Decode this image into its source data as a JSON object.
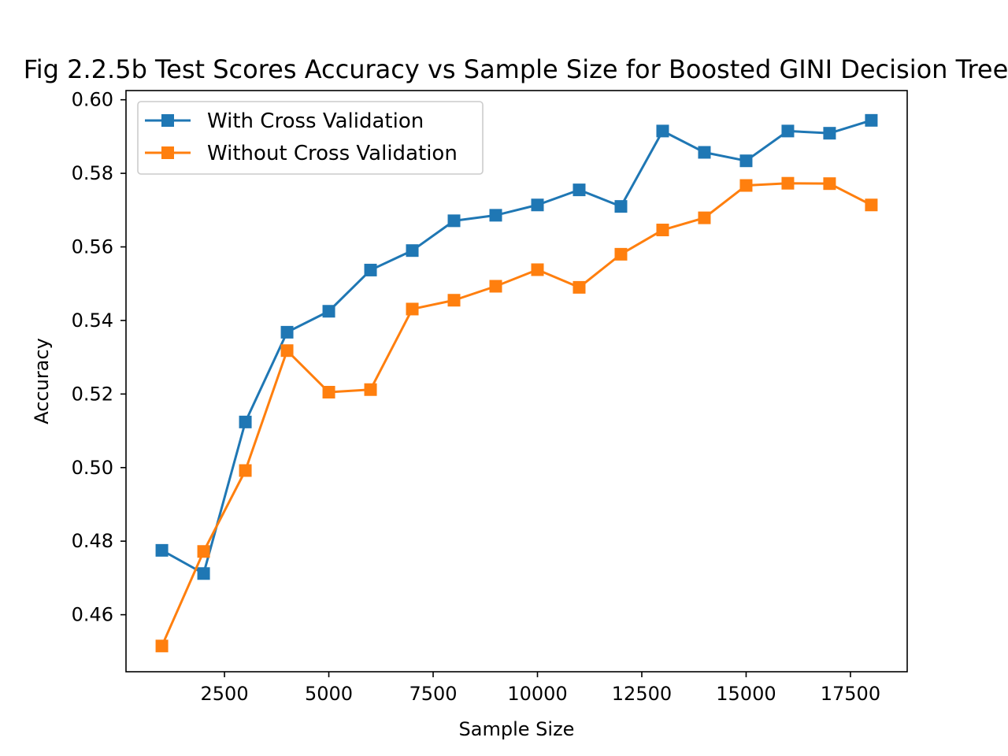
{
  "chart_data": {
    "type": "line",
    "title": "Fig 2.2.5b Test Scores Accuracy vs Sample Size for Boosted GINI Decision Tree",
    "xlabel": "Sample Size",
    "ylabel": "Accuracy",
    "xlim": [
      140,
      18860
    ],
    "ylim": [
      0.4445,
      0.6025
    ],
    "xticks": [
      2500,
      5000,
      7500,
      10000,
      12500,
      15000,
      17500
    ],
    "yticks": [
      0.46,
      0.48,
      0.5,
      0.52,
      0.54,
      0.56,
      0.58,
      0.6
    ],
    "ytick_labels": [
      "0.46",
      "0.48",
      "0.50",
      "0.52",
      "0.54",
      "0.56",
      "0.58",
      "0.60"
    ],
    "grid": false,
    "legend": "upper left",
    "x": [
      1000,
      2000,
      3000,
      4000,
      5000,
      6000,
      7000,
      8000,
      9000,
      10000,
      11000,
      12000,
      13000,
      14000,
      15000,
      16000,
      17000,
      18000
    ],
    "series": [
      {
        "name": "With Cross Validation",
        "color": "#1f77b4",
        "marker": "square",
        "values": [
          0.4775,
          0.4712,
          0.5124,
          0.5368,
          0.5425,
          0.5537,
          0.559,
          0.5671,
          0.5686,
          0.5714,
          0.5755,
          0.571,
          0.5915,
          0.5857,
          0.5834,
          0.5915,
          0.5909,
          0.5944
        ]
      },
      {
        "name": "Without Cross Validation",
        "color": "#ff7f0e",
        "marker": "square",
        "values": [
          0.4515,
          0.4772,
          0.4992,
          0.5318,
          0.5205,
          0.5212,
          0.5431,
          0.5455,
          0.5493,
          0.5538,
          0.549,
          0.558,
          0.5646,
          0.5679,
          0.5767,
          0.5773,
          0.5772,
          0.5714
        ]
      }
    ]
  }
}
